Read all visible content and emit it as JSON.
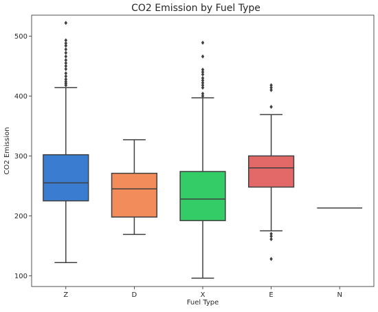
{
  "chart_data": {
    "type": "box",
    "title": "CO2 Emission by Fuel Type",
    "xlabel": "Fuel Type",
    "ylabel": "CO2 Emission",
    "ylim": [
      82,
      535
    ],
    "yticks": [
      100,
      200,
      300,
      400,
      500
    ],
    "grid": false,
    "legend": "none",
    "categories": [
      "Z",
      "D",
      "X",
      "E",
      "N"
    ],
    "boxes": [
      {
        "category": "Z",
        "color": "#3a7dd0",
        "whisker_low": 122,
        "q1": 225,
        "median": 255,
        "q3": 302,
        "whisker_high": 414,
        "outliers": [
          418,
          421,
          424,
          428,
          433,
          438,
          445,
          450,
          455,
          460,
          466,
          472,
          478,
          484,
          488,
          493,
          522
        ]
      },
      {
        "category": "D",
        "color": "#f28c5b",
        "whisker_low": 169,
        "q1": 198,
        "median": 245,
        "q3": 271,
        "whisker_high": 327,
        "outliers": []
      },
      {
        "category": "X",
        "color": "#33cc66",
        "whisker_low": 96,
        "q1": 192,
        "median": 228,
        "q3": 274,
        "whisker_high": 397,
        "outliers": [
          400,
          404,
          414,
          418,
          422,
          426,
          430,
          436,
          440,
          444,
          466,
          489
        ]
      },
      {
        "category": "E",
        "color": "#e36969",
        "whisker_low": 175,
        "q1": 248,
        "median": 280,
        "q3": 300,
        "whisker_high": 369,
        "outliers": [
          128,
          161,
          166,
          170,
          382,
          410,
          414,
          418
        ]
      },
      {
        "category": "N",
        "color": "#a0a0a0",
        "whisker_low": 213,
        "q1": 213,
        "median": 213,
        "q3": 213,
        "whisker_high": 213,
        "outliers": []
      }
    ]
  }
}
